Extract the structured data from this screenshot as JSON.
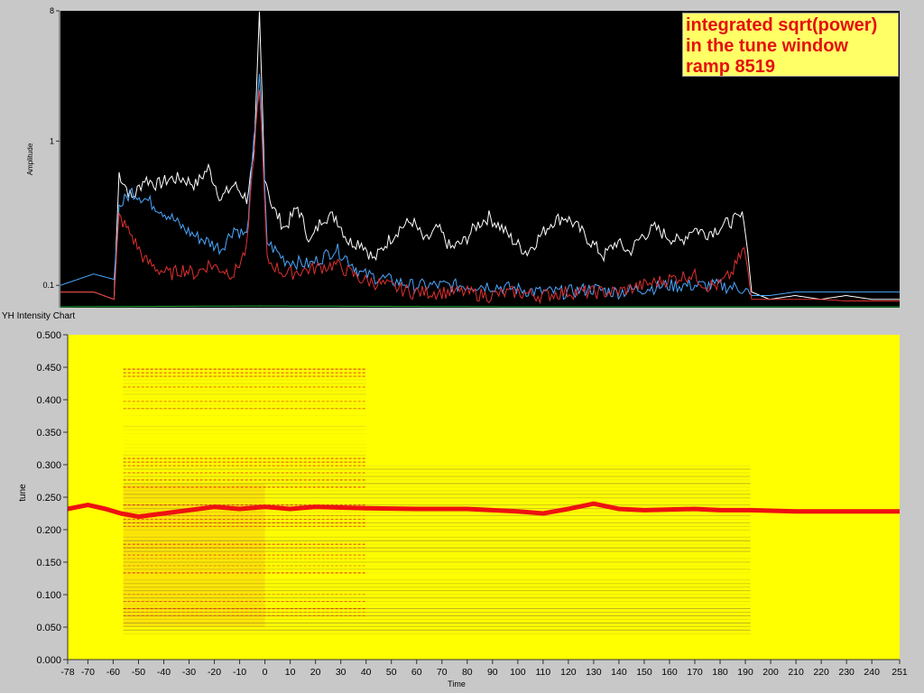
{
  "window": {
    "intensity_chart_label": "YH Intensity Chart"
  },
  "chart_data": [
    {
      "type": "line",
      "title_lines": [
        "integrated sqrt(power)",
        "in the tune window",
        "ramp 8519"
      ],
      "ylabel": "Amplitude",
      "xlabel": "",
      "yscale": "log",
      "ylim": [
        0.07,
        8
      ],
      "xlim": [
        -78,
        251
      ],
      "yticks": [
        {
          "value": 8,
          "label": "8"
        },
        {
          "value": 1,
          "label": "1"
        },
        {
          "value": 0.1,
          "label": "0.1"
        }
      ],
      "background": "#000000",
      "series": [
        {
          "color": "#ffffff",
          "points": [
            [
              -78,
              0.09
            ],
            [
              -65,
              0.09
            ],
            [
              -57,
              0.08
            ],
            [
              -55,
              0.6
            ],
            [
              -50,
              0.4
            ],
            [
              -45,
              0.55
            ],
            [
              -40,
              0.5
            ],
            [
              -35,
              0.55
            ],
            [
              -30,
              0.55
            ],
            [
              -25,
              0.5
            ],
            [
              -20,
              0.65
            ],
            [
              -15,
              0.4
            ],
            [
              -10,
              0.5
            ],
            [
              -5,
              0.4
            ],
            [
              -2,
              0.8
            ],
            [
              0,
              7.5
            ],
            [
              2,
              0.6
            ],
            [
              5,
              0.35
            ],
            [
              10,
              0.25
            ],
            [
              15,
              0.35
            ],
            [
              20,
              0.2
            ],
            [
              25,
              0.3
            ],
            [
              30,
              0.3
            ],
            [
              35,
              0.2
            ],
            [
              40,
              0.2
            ],
            [
              45,
              0.15
            ],
            [
              50,
              0.2
            ],
            [
              55,
              0.25
            ],
            [
              60,
              0.28
            ],
            [
              65,
              0.2
            ],
            [
              70,
              0.25
            ],
            [
              75,
              0.18
            ],
            [
              80,
              0.2
            ],
            [
              85,
              0.26
            ],
            [
              90,
              0.3
            ],
            [
              95,
              0.25
            ],
            [
              100,
              0.2
            ],
            [
              105,
              0.17
            ],
            [
              110,
              0.22
            ],
            [
              115,
              0.28
            ],
            [
              120,
              0.3
            ],
            [
              125,
              0.25
            ],
            [
              130,
              0.2
            ],
            [
              135,
              0.16
            ],
            [
              140,
              0.2
            ],
            [
              145,
              0.17
            ],
            [
              150,
              0.22
            ],
            [
              155,
              0.25
            ],
            [
              160,
              0.22
            ],
            [
              165,
              0.2
            ],
            [
              170,
              0.25
            ],
            [
              175,
              0.23
            ],
            [
              180,
              0.25
            ],
            [
              185,
              0.28
            ],
            [
              190,
              0.3
            ],
            [
              193,
              0.09
            ],
            [
              200,
              0.08
            ],
            [
              210,
              0.085
            ],
            [
              220,
              0.08
            ],
            [
              230,
              0.085
            ],
            [
              240,
              0.08
            ],
            [
              251,
              0.08
            ]
          ]
        },
        {
          "color": "#4aa8ff",
          "points": [
            [
              -78,
              0.1
            ],
            [
              -65,
              0.12
            ],
            [
              -57,
              0.11
            ],
            [
              -55,
              0.35
            ],
            [
              -50,
              0.45
            ],
            [
              -45,
              0.4
            ],
            [
              -40,
              0.35
            ],
            [
              -35,
              0.3
            ],
            [
              -30,
              0.25
            ],
            [
              -25,
              0.22
            ],
            [
              -20,
              0.2
            ],
            [
              -15,
              0.18
            ],
            [
              -10,
              0.25
            ],
            [
              -5,
              0.22
            ],
            [
              0,
              3
            ],
            [
              3,
              0.2
            ],
            [
              10,
              0.15
            ],
            [
              20,
              0.14
            ],
            [
              30,
              0.18
            ],
            [
              35,
              0.15
            ],
            [
              40,
              0.12
            ],
            [
              50,
              0.11
            ],
            [
              60,
              0.1
            ],
            [
              70,
              0.1
            ],
            [
              80,
              0.1
            ],
            [
              90,
              0.1
            ],
            [
              100,
              0.095
            ],
            [
              110,
              0.09
            ],
            [
              120,
              0.09
            ],
            [
              130,
              0.095
            ],
            [
              140,
              0.09
            ],
            [
              150,
              0.095
            ],
            [
              160,
              0.1
            ],
            [
              170,
              0.1
            ],
            [
              180,
              0.1
            ],
            [
              190,
              0.095
            ],
            [
              193,
              0.085
            ],
            [
              200,
              0.085
            ],
            [
              210,
              0.09
            ],
            [
              220,
              0.09
            ],
            [
              230,
              0.09
            ],
            [
              240,
              0.09
            ],
            [
              251,
              0.09
            ]
          ]
        },
        {
          "color": "#e03030",
          "points": [
            [
              -78,
              0.09
            ],
            [
              -65,
              0.09
            ],
            [
              -57,
              0.08
            ],
            [
              -55,
              0.3
            ],
            [
              -50,
              0.22
            ],
            [
              -45,
              0.15
            ],
            [
              -40,
              0.13
            ],
            [
              -35,
              0.12
            ],
            [
              -30,
              0.13
            ],
            [
              -25,
              0.12
            ],
            [
              -20,
              0.14
            ],
            [
              -15,
              0.13
            ],
            [
              -10,
              0.12
            ],
            [
              -5,
              0.18
            ],
            [
              0,
              2.5
            ],
            [
              3,
              0.15
            ],
            [
              10,
              0.12
            ],
            [
              20,
              0.13
            ],
            [
              30,
              0.14
            ],
            [
              40,
              0.11
            ],
            [
              50,
              0.1
            ],
            [
              60,
              0.09
            ],
            [
              70,
              0.09
            ],
            [
              80,
              0.09
            ],
            [
              90,
              0.085
            ],
            [
              100,
              0.09
            ],
            [
              110,
              0.085
            ],
            [
              120,
              0.09
            ],
            [
              130,
              0.09
            ],
            [
              140,
              0.09
            ],
            [
              150,
              0.1
            ],
            [
              160,
              0.11
            ],
            [
              170,
              0.12
            ],
            [
              175,
              0.1
            ],
            [
              180,
              0.1
            ],
            [
              185,
              0.12
            ],
            [
              190,
              0.18
            ],
            [
              193,
              0.08
            ],
            [
              200,
              0.08
            ],
            [
              210,
              0.08
            ],
            [
              220,
              0.08
            ],
            [
              230,
              0.078
            ],
            [
              240,
              0.078
            ],
            [
              251,
              0.078
            ]
          ]
        },
        {
          "color": "#20b040",
          "points": [
            [
              -78,
              0.071
            ],
            [
              0,
              0.072
            ],
            [
              100,
              0.071
            ],
            [
              200,
              0.071
            ],
            [
              251,
              0.071
            ]
          ]
        }
      ]
    },
    {
      "type": "heatmap",
      "ylabel": "tune",
      "xlabel": "Time",
      "xlim": [
        -78,
        251
      ],
      "ylim": [
        0,
        0.5
      ],
      "xticks": [
        "-78",
        "-70",
        "-60",
        "-50",
        "-40",
        "-30",
        "-20",
        "-10",
        "0",
        "10",
        "20",
        "30",
        "40",
        "50",
        "60",
        "70",
        "80",
        "90",
        "100",
        "110",
        "120",
        "130",
        "140",
        "150",
        "160",
        "170",
        "180",
        "190",
        "200",
        "210",
        "220",
        "230",
        "240",
        "251"
      ],
      "xtick_values": [
        -78,
        -70,
        -60,
        -50,
        -40,
        -30,
        -20,
        -10,
        0,
        10,
        20,
        30,
        40,
        50,
        60,
        70,
        80,
        90,
        100,
        110,
        120,
        130,
        140,
        150,
        160,
        170,
        180,
        190,
        200,
        210,
        220,
        230,
        240,
        251
      ],
      "yticks": [
        "0.000",
        "0.050",
        "0.100",
        "0.150",
        "0.200",
        "0.250",
        "0.300",
        "0.350",
        "0.400",
        "0.450",
        "0.500"
      ],
      "ytick_values": [
        0,
        0.05,
        0.1,
        0.15,
        0.2,
        0.25,
        0.3,
        0.35,
        0.4,
        0.45,
        0.5
      ],
      "background": "#ffff00",
      "tune_line": {
        "color": "#ee1111",
        "points": [
          [
            -78,
            0.232
          ],
          [
            -70,
            0.238
          ],
          [
            -63,
            0.232
          ],
          [
            -57,
            0.225
          ],
          [
            -50,
            0.22
          ],
          [
            -40,
            0.225
          ],
          [
            -30,
            0.23
          ],
          [
            -20,
            0.235
          ],
          [
            -10,
            0.232
          ],
          [
            0,
            0.235
          ],
          [
            10,
            0.232
          ],
          [
            20,
            0.235
          ],
          [
            40,
            0.233
          ],
          [
            60,
            0.232
          ],
          [
            80,
            0.232
          ],
          [
            100,
            0.228
          ],
          [
            110,
            0.225
          ],
          [
            120,
            0.232
          ],
          [
            130,
            0.24
          ],
          [
            140,
            0.232
          ],
          [
            150,
            0.23
          ],
          [
            170,
            0.232
          ],
          [
            180,
            0.23
          ],
          [
            192,
            0.23
          ],
          [
            210,
            0.228
          ],
          [
            230,
            0.228
          ],
          [
            251,
            0.228
          ]
        ]
      }
    }
  ]
}
